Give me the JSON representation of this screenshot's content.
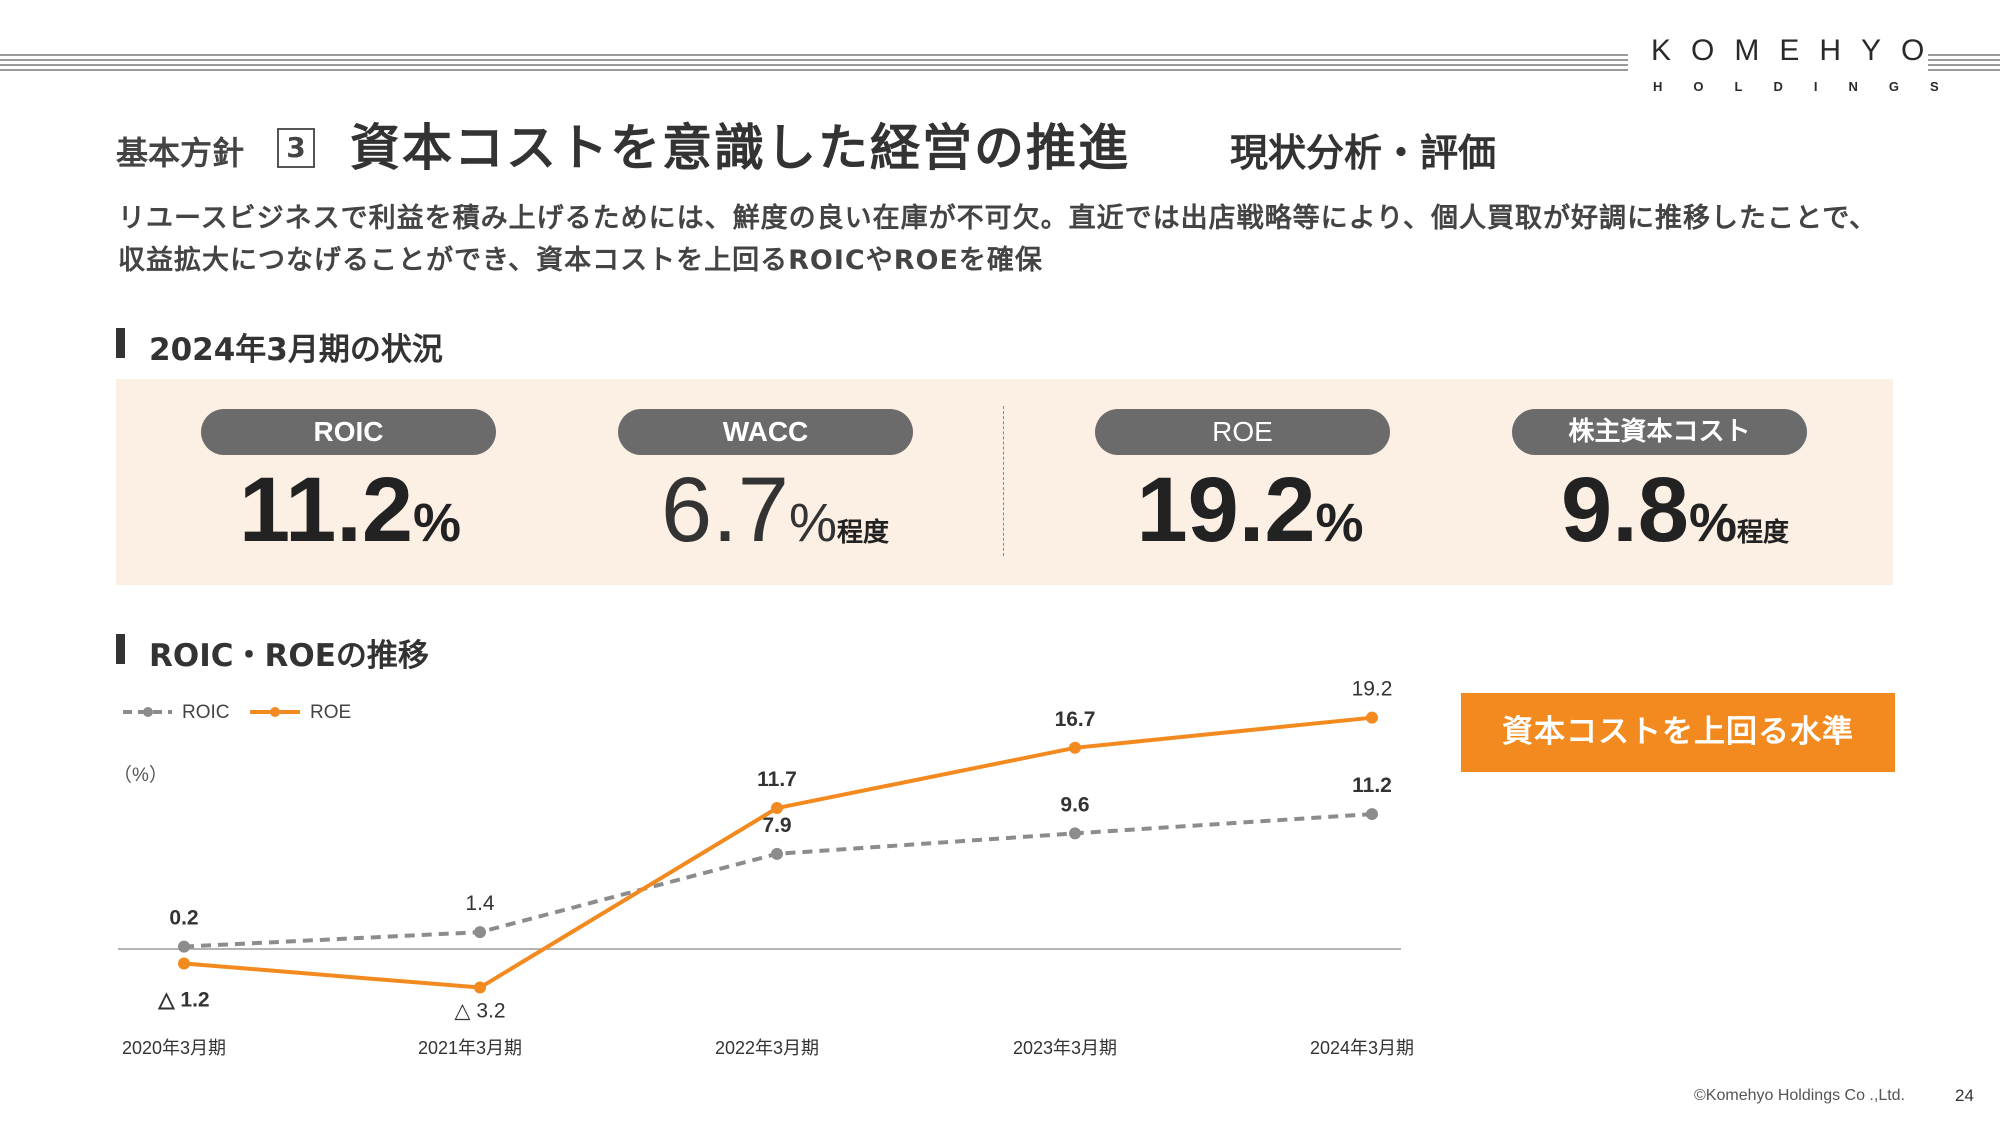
{
  "logo": {
    "main": "KOMEHYO",
    "sub": "HOLDINGS"
  },
  "header": {
    "policy_label": "基本方針",
    "policy_number": "3",
    "title": "資本コストを意識した経営の推進",
    "subtitle": "現状分析・評価"
  },
  "lead_text": "リユースビジネスで利益を積み上げるためには、鮮度の良い在庫が不可欠。直近では出店戦略等により、個人買取が好調に推移したことで、収益拡大につなげることができ、資本コストを上回るROICやROEを確保",
  "status_section": {
    "title": "2024年3月期の状況",
    "kpis": [
      {
        "label": "ROIC",
        "value": "11.2",
        "unit": "%",
        "suffix": ""
      },
      {
        "label": "WACC",
        "value": "6.7",
        "unit": "%",
        "suffix": "程度"
      },
      {
        "label": "ROE",
        "value": "19.2",
        "unit": "%",
        "suffix": ""
      },
      {
        "label": "株主資本コスト",
        "value": "9.8",
        "unit": "%",
        "suffix": "程度"
      }
    ]
  },
  "trend_section": {
    "title": "ROIC・ROEの推移",
    "unit_label": "（%）",
    "callout": "資本コストを上回る水準"
  },
  "chart_data": {
    "type": "line",
    "title": "ROIC・ROEの推移",
    "ylabel": "（%）",
    "categories": [
      "2020年3月期",
      "2021年3月期",
      "2022年3月期",
      "2023年3月期",
      "2024年3月期"
    ],
    "series": [
      {
        "name": "ROIC",
        "values": [
          0.2,
          1.4,
          7.9,
          9.6,
          11.2
        ],
        "labels": [
          "0.2",
          "1.4",
          "7.9",
          "9.6",
          "11.2"
        ],
        "color": "#8c8c8c",
        "style": "dashed"
      },
      {
        "name": "ROE",
        "values": [
          -1.2,
          -3.2,
          11.7,
          16.7,
          19.2
        ],
        "labels": [
          "△ 1.2",
          "△ 3.2",
          "11.7",
          "16.7",
          "19.2"
        ],
        "color": "#f28a1f",
        "style": "solid"
      }
    ],
    "ylim": [
      -5,
      21
    ],
    "legend": "top-left",
    "grid": false
  },
  "footer": {
    "copyright": "©Komehyo Holdings Co .,Ltd.",
    "page": "24"
  },
  "colors": {
    "accent": "#f28a1f",
    "panel": "#fcefe4",
    "pill": "#6b6b6b",
    "roic": "#8c8c8c"
  }
}
